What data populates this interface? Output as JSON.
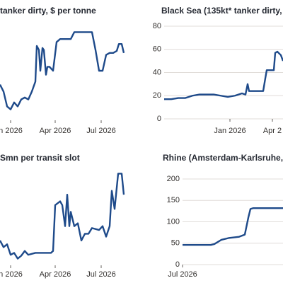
{
  "chart_data": [
    {
      "type": "line",
      "title": "tanker dirty, $ per tonne",
      "x": [
        0,
        5,
        10,
        15,
        20,
        25,
        30,
        35,
        40,
        45,
        50,
        52,
        55,
        57,
        60,
        62,
        65,
        67,
        70,
        75,
        80,
        85,
        90,
        95,
        100,
        105,
        110,
        115,
        120,
        125,
        130,
        135,
        140,
        145,
        150,
        155,
        160,
        165,
        168,
        172,
        175
      ],
      "series": [
        {
          "color": "#1e4a8a",
          "values": [
            36,
            29,
            14,
            11,
            18,
            14,
            21,
            23,
            21,
            29,
            39,
            75,
            71,
            50,
            73,
            71,
            46,
            54,
            54,
            50,
            79,
            82,
            82,
            82,
            82,
            89,
            89,
            89,
            89,
            89,
            89,
            71,
            50,
            50,
            66,
            68,
            68,
            70,
            77,
            77,
            68
          ]
        }
      ],
      "xlim": [
        0,
        175
      ],
      "ylim": [
        0,
        100
      ],
      "xticks": [
        {
          "value": 15,
          "label": "n 2026"
        },
        {
          "value": 78,
          "label": "Apr 2026"
        },
        {
          "value": 143,
          "label": "Jul 2026"
        }
      ],
      "grid": false
    },
    {
      "type": "line",
      "title": "Black Sea (135kt* tanker dirty, $",
      "x": [
        0,
        10,
        20,
        30,
        40,
        50,
        60,
        70,
        80,
        90,
        100,
        105,
        110,
        115,
        118,
        120,
        130,
        140,
        143,
        145,
        150,
        155,
        157,
        160,
        165,
        168
      ],
      "series": [
        {
          "color": "#1e4a8a",
          "values": [
            17,
            17,
            18,
            18,
            20,
            21,
            21,
            21,
            20,
            19,
            20,
            21,
            22,
            21,
            30,
            24,
            24,
            24,
            35,
            42,
            42,
            42,
            57,
            58,
            55,
            50
          ]
        }
      ],
      "xlim": [
        0,
        168
      ],
      "ylim": [
        0,
        80
      ],
      "yticks": [
        0,
        20,
        40,
        60,
        80
      ],
      "xticks": [
        {
          "value": 93,
          "label": "Jan 2026"
        },
        {
          "value": 153,
          "label": "Apr 2"
        }
      ],
      "grid": true
    },
    {
      "type": "line",
      "title": "Smn per transit slot",
      "x": [
        0,
        5,
        10,
        15,
        20,
        25,
        30,
        35,
        40,
        50,
        60,
        72,
        75,
        78,
        85,
        88,
        92,
        95,
        98,
        100,
        105,
        110,
        115,
        120,
        125,
        130,
        140,
        145,
        150,
        155,
        158,
        162,
        167,
        172,
        175
      ],
      "series": [
        {
          "color": "#1e4a8a",
          "values": [
            26,
            19,
            22,
            11,
            13,
            7,
            10,
            15,
            11,
            13,
            13,
            13,
            15,
            63,
            67,
            63,
            41,
            74,
            41,
            56,
            41,
            44,
            26,
            33,
            33,
            39,
            37,
            41,
            30,
            41,
            78,
            59,
            96,
            96,
            74
          ]
        }
      ],
      "xlim": [
        0,
        175
      ],
      "ylim": [
        0,
        100
      ],
      "xticks": [
        {
          "value": 15,
          "label": "n 2026"
        },
        {
          "value": 78,
          "label": "Apr 2026"
        },
        {
          "value": 143,
          "label": "Jul 2026"
        }
      ],
      "grid": false
    },
    {
      "type": "line",
      "title": "Rhine (Amsterdam-Karlsruhe, €",
      "x": [
        0,
        40,
        45,
        55,
        65,
        80,
        88,
        93,
        96,
        100,
        142
      ],
      "series": [
        {
          "color": "#1e4a8a",
          "values": [
            46,
            46,
            48,
            58,
            62,
            65,
            70,
            110,
            130,
            132,
            132
          ]
        }
      ],
      "xlim": [
        0,
        142
      ],
      "ylim": [
        0,
        200
      ],
      "yticks": [
        0,
        50,
        100,
        150,
        200
      ],
      "xticks": [
        {
          "value": 0,
          "label": "Jul 2026"
        }
      ],
      "grid": true
    }
  ]
}
